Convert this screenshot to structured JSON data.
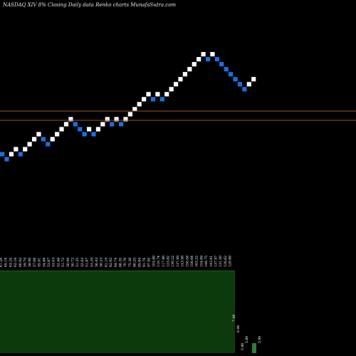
{
  "chart_data": {
    "type": "renko",
    "title": "NASDAQ XIV 8% Closing Daily data Renko charts MunafaSutra.com",
    "background": "#000000",
    "up_color": "#ffffff",
    "down_color": "#1a6fe0",
    "line_color": "#a0522d",
    "volume_color": "#0c3a0c",
    "volume_bar_color": "#2e7d32",
    "price_tick_labels": [
      "67.20",
      "65.16",
      "63.24",
      "62.16",
      "60.92",
      "59.74",
      "58.90",
      "57.06",
      "55.91",
      "54.66",
      "53.87",
      "53.03",
      "52.46",
      "51.72",
      "50.94",
      "50.72",
      "51.25",
      "52.63",
      "51.87",
      "53.29",
      "56.43",
      "58.23",
      "61.10",
      "62.92",
      "64.74",
      "66.35",
      "70.76",
      "75.38",
      "80.25",
      "85.64",
      "91.76",
      "97.94",
      "103.88",
      "110.74",
      "117.96",
      "123.82",
      "130.22",
      "137.49",
      "143.56",
      "150.58",
      "156.64",
      "163.22",
      "154.69",
      "148.75",
      "143.81",
      "137.97",
      "131.50",
      "126.62",
      "120.68"
    ],
    "volume_labels": [
      "7.48",
      "6.98",
      "5.96",
      "5.80",
      "5.90"
    ],
    "bricks": [
      {
        "dir": "down",
        "level": 3
      },
      {
        "dir": "down",
        "level": 2
      },
      {
        "dir": "up",
        "level": 3
      },
      {
        "dir": "up",
        "level": 4
      },
      {
        "dir": "down",
        "level": 3
      },
      {
        "dir": "up",
        "level": 4
      },
      {
        "dir": "up",
        "level": 5
      },
      {
        "dir": "up",
        "level": 6
      },
      {
        "dir": "up",
        "level": 7
      },
      {
        "dir": "down",
        "level": 6
      },
      {
        "dir": "down",
        "level": 5
      },
      {
        "dir": "up",
        "level": 6
      },
      {
        "dir": "up",
        "level": 7
      },
      {
        "dir": "up",
        "level": 8
      },
      {
        "dir": "up",
        "level": 9
      },
      {
        "dir": "up",
        "level": 10
      },
      {
        "dir": "down",
        "level": 9
      },
      {
        "dir": "down",
        "level": 8
      },
      {
        "dir": "down",
        "level": 7
      },
      {
        "dir": "up",
        "level": 8
      },
      {
        "dir": "down",
        "level": 7
      },
      {
        "dir": "up",
        "level": 8
      },
      {
        "dir": "up",
        "level": 9
      },
      {
        "dir": "up",
        "level": 10
      },
      {
        "dir": "down",
        "level": 9
      },
      {
        "dir": "up",
        "level": 10
      },
      {
        "dir": "down",
        "level": 9
      },
      {
        "dir": "up",
        "level": 10
      },
      {
        "dir": "up",
        "level": 11
      },
      {
        "dir": "up",
        "level": 12
      },
      {
        "dir": "up",
        "level": 13
      },
      {
        "dir": "up",
        "level": 14
      },
      {
        "dir": "up",
        "level": 15
      },
      {
        "dir": "down",
        "level": 14
      },
      {
        "dir": "up",
        "level": 15
      },
      {
        "dir": "down",
        "level": 14
      },
      {
        "dir": "up",
        "level": 15
      },
      {
        "dir": "up",
        "level": 16
      },
      {
        "dir": "up",
        "level": 17
      },
      {
        "dir": "up",
        "level": 18
      },
      {
        "dir": "up",
        "level": 19
      },
      {
        "dir": "up",
        "level": 20
      },
      {
        "dir": "up",
        "level": 21
      },
      {
        "dir": "up",
        "level": 22
      },
      {
        "dir": "up",
        "level": 23
      },
      {
        "dir": "down",
        "level": 22
      },
      {
        "dir": "up",
        "level": 23
      },
      {
        "dir": "down",
        "level": 22
      },
      {
        "dir": "down",
        "level": 21
      },
      {
        "dir": "down",
        "level": 20
      },
      {
        "dir": "down",
        "level": 19
      },
      {
        "dir": "down",
        "level": 18
      },
      {
        "dir": "down",
        "level": 17
      },
      {
        "dir": "down",
        "level": 16
      },
      {
        "dir": "up",
        "level": 17
      },
      {
        "dir": "up",
        "level": 18
      }
    ],
    "volume_bars": [
      0,
      0.35
    ]
  }
}
